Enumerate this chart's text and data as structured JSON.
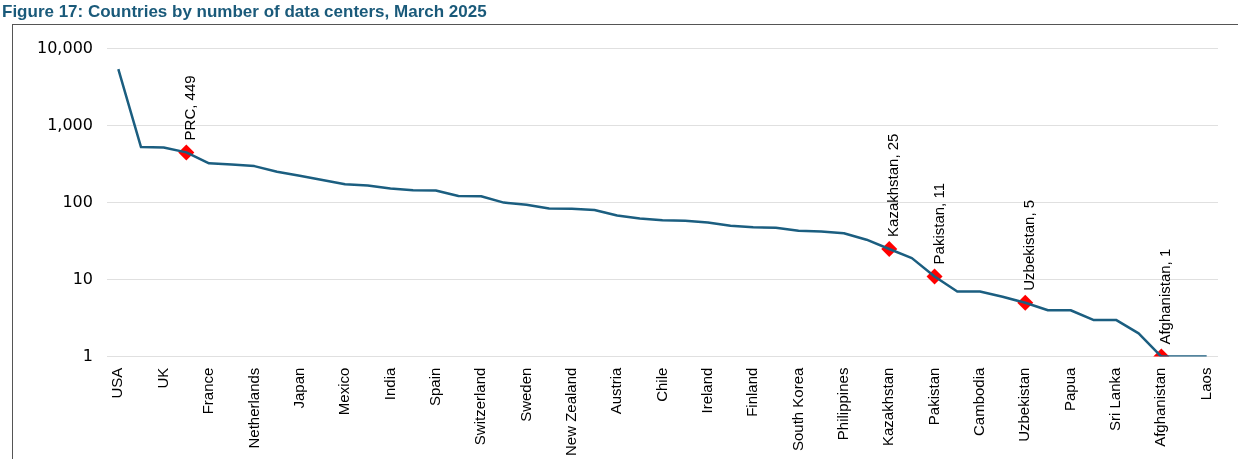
{
  "chart_data": {
    "type": "line",
    "title": "Figure 17: Countries by number of data centers, March 2025",
    "categories": [
      "USA",
      null,
      "UK",
      null,
      "France",
      null,
      "Netherlands",
      null,
      "Japan",
      null,
      "Mexico",
      null,
      "India",
      null,
      "Spain",
      null,
      "Switzerland",
      null,
      "Sweden",
      null,
      "New Zealand",
      null,
      "Austria",
      null,
      "Chile",
      null,
      "Ireland",
      null,
      "Finland",
      null,
      "South Korea",
      null,
      "Philippines",
      null,
      "Kazakhstan",
      null,
      "Pakistan",
      null,
      "Cambodia",
      null,
      "Uzbekistan",
      null,
      "Papua",
      null,
      "Sri Lanka",
      null,
      "Afghanistan",
      null,
      "Laos"
    ],
    "series": [
      {
        "color": "#1b5e80",
        "marker": "none",
        "values": [
          5400,
          527,
          520,
          449,
          324,
          313,
          298,
          252,
          223,
          197,
          173,
          167,
          153,
          145,
          144,
          122,
          121,
          100,
          94,
          84,
          83,
          80,
          68,
          62,
          59,
          58,
          55,
          50,
          48,
          47,
          43,
          42,
          40,
          33,
          25,
          19,
          11,
          7,
          7,
          6,
          5,
          4,
          4,
          3,
          3,
          2,
          1,
          1,
          1
        ]
      },
      {
        "type": "scatter",
        "color": "#ff0000",
        "marker": "diamond",
        "values": [
          null,
          null,
          null,
          449,
          null,
          null,
          null,
          null,
          null,
          null,
          null,
          null,
          null,
          null,
          null,
          null,
          null,
          null,
          null,
          null,
          null,
          null,
          null,
          null,
          null,
          null,
          null,
          null,
          null,
          null,
          null,
          null,
          null,
          null,
          25,
          null,
          11,
          null,
          null,
          null,
          5,
          null,
          null,
          null,
          null,
          null,
          1,
          null,
          null
        ],
        "value_labels": [
          null,
          null,
          null,
          "PRC, 449",
          null,
          null,
          null,
          null,
          null,
          null,
          null,
          null,
          null,
          null,
          null,
          null,
          null,
          null,
          null,
          null,
          null,
          null,
          null,
          null,
          null,
          null,
          null,
          null,
          null,
          null,
          null,
          null,
          null,
          null,
          "Kazakhstan, 25",
          null,
          "Pakistan, 11",
          null,
          null,
          null,
          "Uzbekistan, 5",
          null,
          null,
          null,
          null,
          null,
          "Afghanistan, 1",
          null,
          null
        ]
      }
    ],
    "log": true,
    "ylim": [
      1,
      10000
    ],
    "yticks": [
      1,
      10,
      100,
      {
        "value": 1000,
        "label": "1,000"
      },
      {
        "value": 10000,
        "label": "10,000"
      }
    ],
    "grid": "y",
    "legend": false
  }
}
